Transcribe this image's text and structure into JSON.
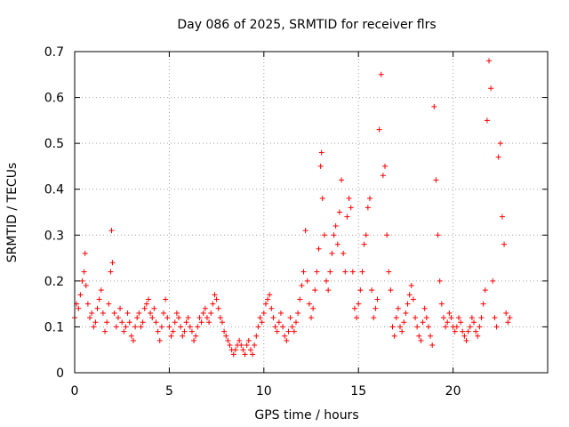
{
  "chart_data": {
    "type": "scatter",
    "title": "Day 086 of 2025, SRMTID for receiver flrs",
    "xlabel": "GPS time / hours",
    "ylabel": "SRMTID / TECUs",
    "xlim": [
      0,
      25
    ],
    "ylim": [
      0,
      0.7
    ],
    "xticks": [
      0,
      5,
      10,
      15,
      20
    ],
    "xtick_labels": [
      "0",
      "5",
      "10",
      "15",
      "20"
    ],
    "yticks": [
      0,
      0.1,
      0.2,
      0.3,
      0.4,
      0.5,
      0.6,
      0.7
    ],
    "ytick_labels": [
      "0",
      "0.1",
      "0.2",
      "0.3",
      "0.4",
      "0.5",
      "0.6",
      "0.7"
    ],
    "grid": true,
    "marker": "plus",
    "color": "#ff0000",
    "series": [
      {
        "name": "SRMTID",
        "x": [
          0.0,
          0.1,
          0.2,
          0.3,
          0.4,
          0.5,
          0.55,
          0.6,
          0.7,
          0.8,
          0.9,
          1.0,
          1.1,
          1.2,
          1.3,
          1.4,
          1.5,
          1.6,
          1.7,
          1.8,
          1.9,
          1.95,
          2.0,
          2.1,
          2.2,
          2.3,
          2.4,
          2.5,
          2.6,
          2.7,
          2.8,
          2.9,
          3.0,
          3.1,
          3.2,
          3.3,
          3.4,
          3.5,
          3.6,
          3.7,
          3.8,
          3.9,
          4.0,
          4.1,
          4.2,
          4.3,
          4.4,
          4.5,
          4.6,
          4.7,
          4.8,
          4.9,
          5.0,
          5.1,
          5.2,
          5.3,
          5.4,
          5.5,
          5.6,
          5.7,
          5.8,
          5.9,
          6.0,
          6.1,
          6.2,
          6.3,
          6.4,
          6.5,
          6.6,
          6.7,
          6.8,
          6.9,
          7.0,
          7.1,
          7.2,
          7.3,
          7.4,
          7.5,
          7.6,
          7.7,
          7.8,
          7.9,
          8.0,
          8.1,
          8.2,
          8.3,
          8.4,
          8.5,
          8.6,
          8.7,
          8.8,
          8.9,
          9.0,
          9.1,
          9.2,
          9.3,
          9.4,
          9.5,
          9.6,
          9.7,
          9.8,
          9.9,
          10.0,
          10.1,
          10.2,
          10.3,
          10.4,
          10.5,
          10.6,
          10.7,
          10.8,
          10.9,
          11.0,
          11.1,
          11.2,
          11.3,
          11.4,
          11.5,
          11.6,
          11.7,
          11.8,
          11.9,
          12.0,
          12.1,
          12.2,
          12.3,
          12.4,
          12.5,
          12.6,
          12.7,
          12.8,
          12.9,
          13.0,
          13.05,
          13.1,
          13.2,
          13.3,
          13.4,
          13.5,
          13.6,
          13.7,
          13.8,
          13.9,
          14.0,
          14.1,
          14.2,
          14.3,
          14.4,
          14.5,
          14.6,
          14.7,
          14.8,
          14.9,
          15.0,
          15.1,
          15.2,
          15.3,
          15.4,
          15.5,
          15.6,
          15.7,
          15.8,
          15.9,
          16.0,
          16.1,
          16.2,
          16.3,
          16.4,
          16.5,
          16.6,
          16.7,
          16.8,
          16.9,
          17.0,
          17.1,
          17.2,
          17.3,
          17.4,
          17.5,
          17.6,
          17.7,
          17.8,
          17.9,
          18.0,
          18.1,
          18.2,
          18.3,
          18.4,
          18.5,
          18.6,
          18.7,
          18.8,
          18.9,
          19.0,
          19.1,
          19.2,
          19.3,
          19.4,
          19.5,
          19.6,
          19.7,
          19.8,
          19.9,
          20.0,
          20.1,
          20.2,
          20.3,
          20.4,
          20.5,
          20.6,
          20.7,
          20.8,
          20.9,
          21.0,
          21.1,
          21.2,
          21.3,
          21.4,
          21.5,
          21.6,
          21.7,
          21.8,
          21.9,
          22.0,
          22.1,
          22.2,
          22.3,
          22.4,
          22.5,
          22.6,
          22.7,
          22.8,
          22.9,
          23.0
        ],
        "y": [
          0.12,
          0.15,
          0.14,
          0.17,
          0.2,
          0.22,
          0.26,
          0.19,
          0.15,
          0.12,
          0.13,
          0.1,
          0.11,
          0.14,
          0.16,
          0.18,
          0.13,
          0.09,
          0.11,
          0.15,
          0.22,
          0.31,
          0.24,
          0.13,
          0.1,
          0.12,
          0.14,
          0.11,
          0.09,
          0.1,
          0.13,
          0.11,
          0.08,
          0.07,
          0.1,
          0.12,
          0.13,
          0.1,
          0.11,
          0.14,
          0.15,
          0.16,
          0.13,
          0.12,
          0.14,
          0.11,
          0.09,
          0.07,
          0.1,
          0.13,
          0.16,
          0.12,
          0.1,
          0.08,
          0.09,
          0.11,
          0.13,
          0.12,
          0.1,
          0.08,
          0.09,
          0.11,
          0.12,
          0.1,
          0.09,
          0.07,
          0.08,
          0.1,
          0.12,
          0.11,
          0.13,
          0.14,
          0.12,
          0.11,
          0.13,
          0.15,
          0.17,
          0.16,
          0.14,
          0.12,
          0.11,
          0.09,
          0.08,
          0.07,
          0.06,
          0.05,
          0.04,
          0.05,
          0.06,
          0.07,
          0.06,
          0.05,
          0.04,
          0.06,
          0.07,
          0.05,
          0.04,
          0.06,
          0.08,
          0.1,
          0.12,
          0.11,
          0.13,
          0.15,
          0.16,
          0.17,
          0.14,
          0.12,
          0.1,
          0.09,
          0.11,
          0.13,
          0.1,
          0.08,
          0.07,
          0.09,
          0.12,
          0.1,
          0.09,
          0.11,
          0.13,
          0.16,
          0.19,
          0.22,
          0.31,
          0.2,
          0.15,
          0.12,
          0.14,
          0.18,
          0.22,
          0.27,
          0.45,
          0.48,
          0.38,
          0.3,
          0.2,
          0.18,
          0.22,
          0.26,
          0.3,
          0.32,
          0.28,
          0.35,
          0.42,
          0.26,
          0.22,
          0.34,
          0.38,
          0.36,
          0.22,
          0.14,
          0.12,
          0.15,
          0.18,
          0.22,
          0.28,
          0.3,
          0.36,
          0.38,
          0.18,
          0.12,
          0.14,
          0.16,
          0.53,
          0.65,
          0.43,
          0.45,
          0.3,
          0.22,
          0.18,
          0.1,
          0.08,
          0.12,
          0.14,
          0.1,
          0.09,
          0.11,
          0.13,
          0.15,
          0.17,
          0.19,
          0.16,
          0.12,
          0.1,
          0.08,
          0.07,
          0.11,
          0.14,
          0.12,
          0.1,
          0.08,
          0.06,
          0.58,
          0.42,
          0.3,
          0.2,
          0.15,
          0.12,
          0.1,
          0.11,
          0.13,
          0.12,
          0.1,
          0.09,
          0.1,
          0.12,
          0.11,
          0.09,
          0.08,
          0.07,
          0.09,
          0.1,
          0.12,
          0.11,
          0.09,
          0.08,
          0.1,
          0.12,
          0.15,
          0.18,
          0.55,
          0.68,
          0.62,
          0.2,
          0.12,
          0.1,
          0.47,
          0.5,
          0.34,
          0.28,
          0.13,
          0.11,
          0.12
        ]
      }
    ]
  }
}
